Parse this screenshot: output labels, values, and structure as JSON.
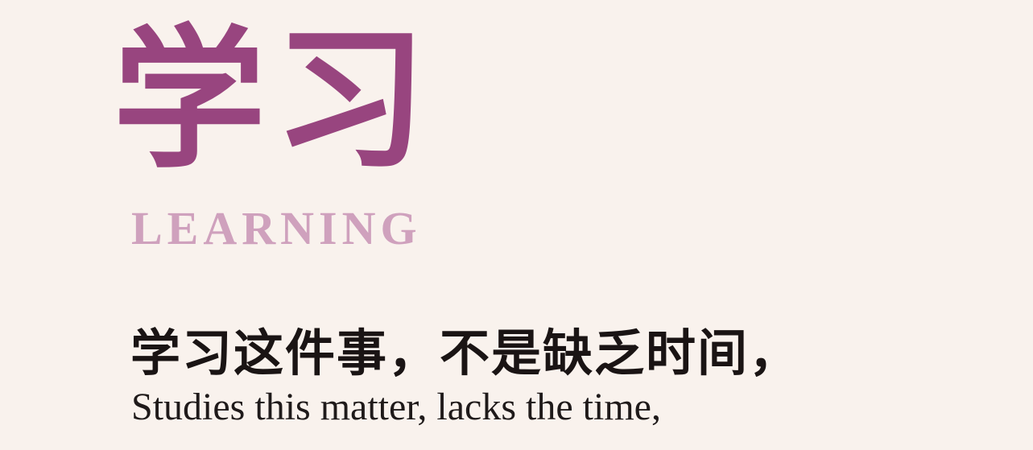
{
  "poster": {
    "calligraphy_title": "学习",
    "english_title": "LEARNING",
    "chinese_line": "学习这件事，不是缺乏时间，",
    "english_line": "Studies this matter, lacks the time,"
  },
  "colors": {
    "background": "#f9f2ed",
    "calligraphy": "#98457f",
    "english_title": "#cfa1bd",
    "body_text": "#1a1414"
  }
}
